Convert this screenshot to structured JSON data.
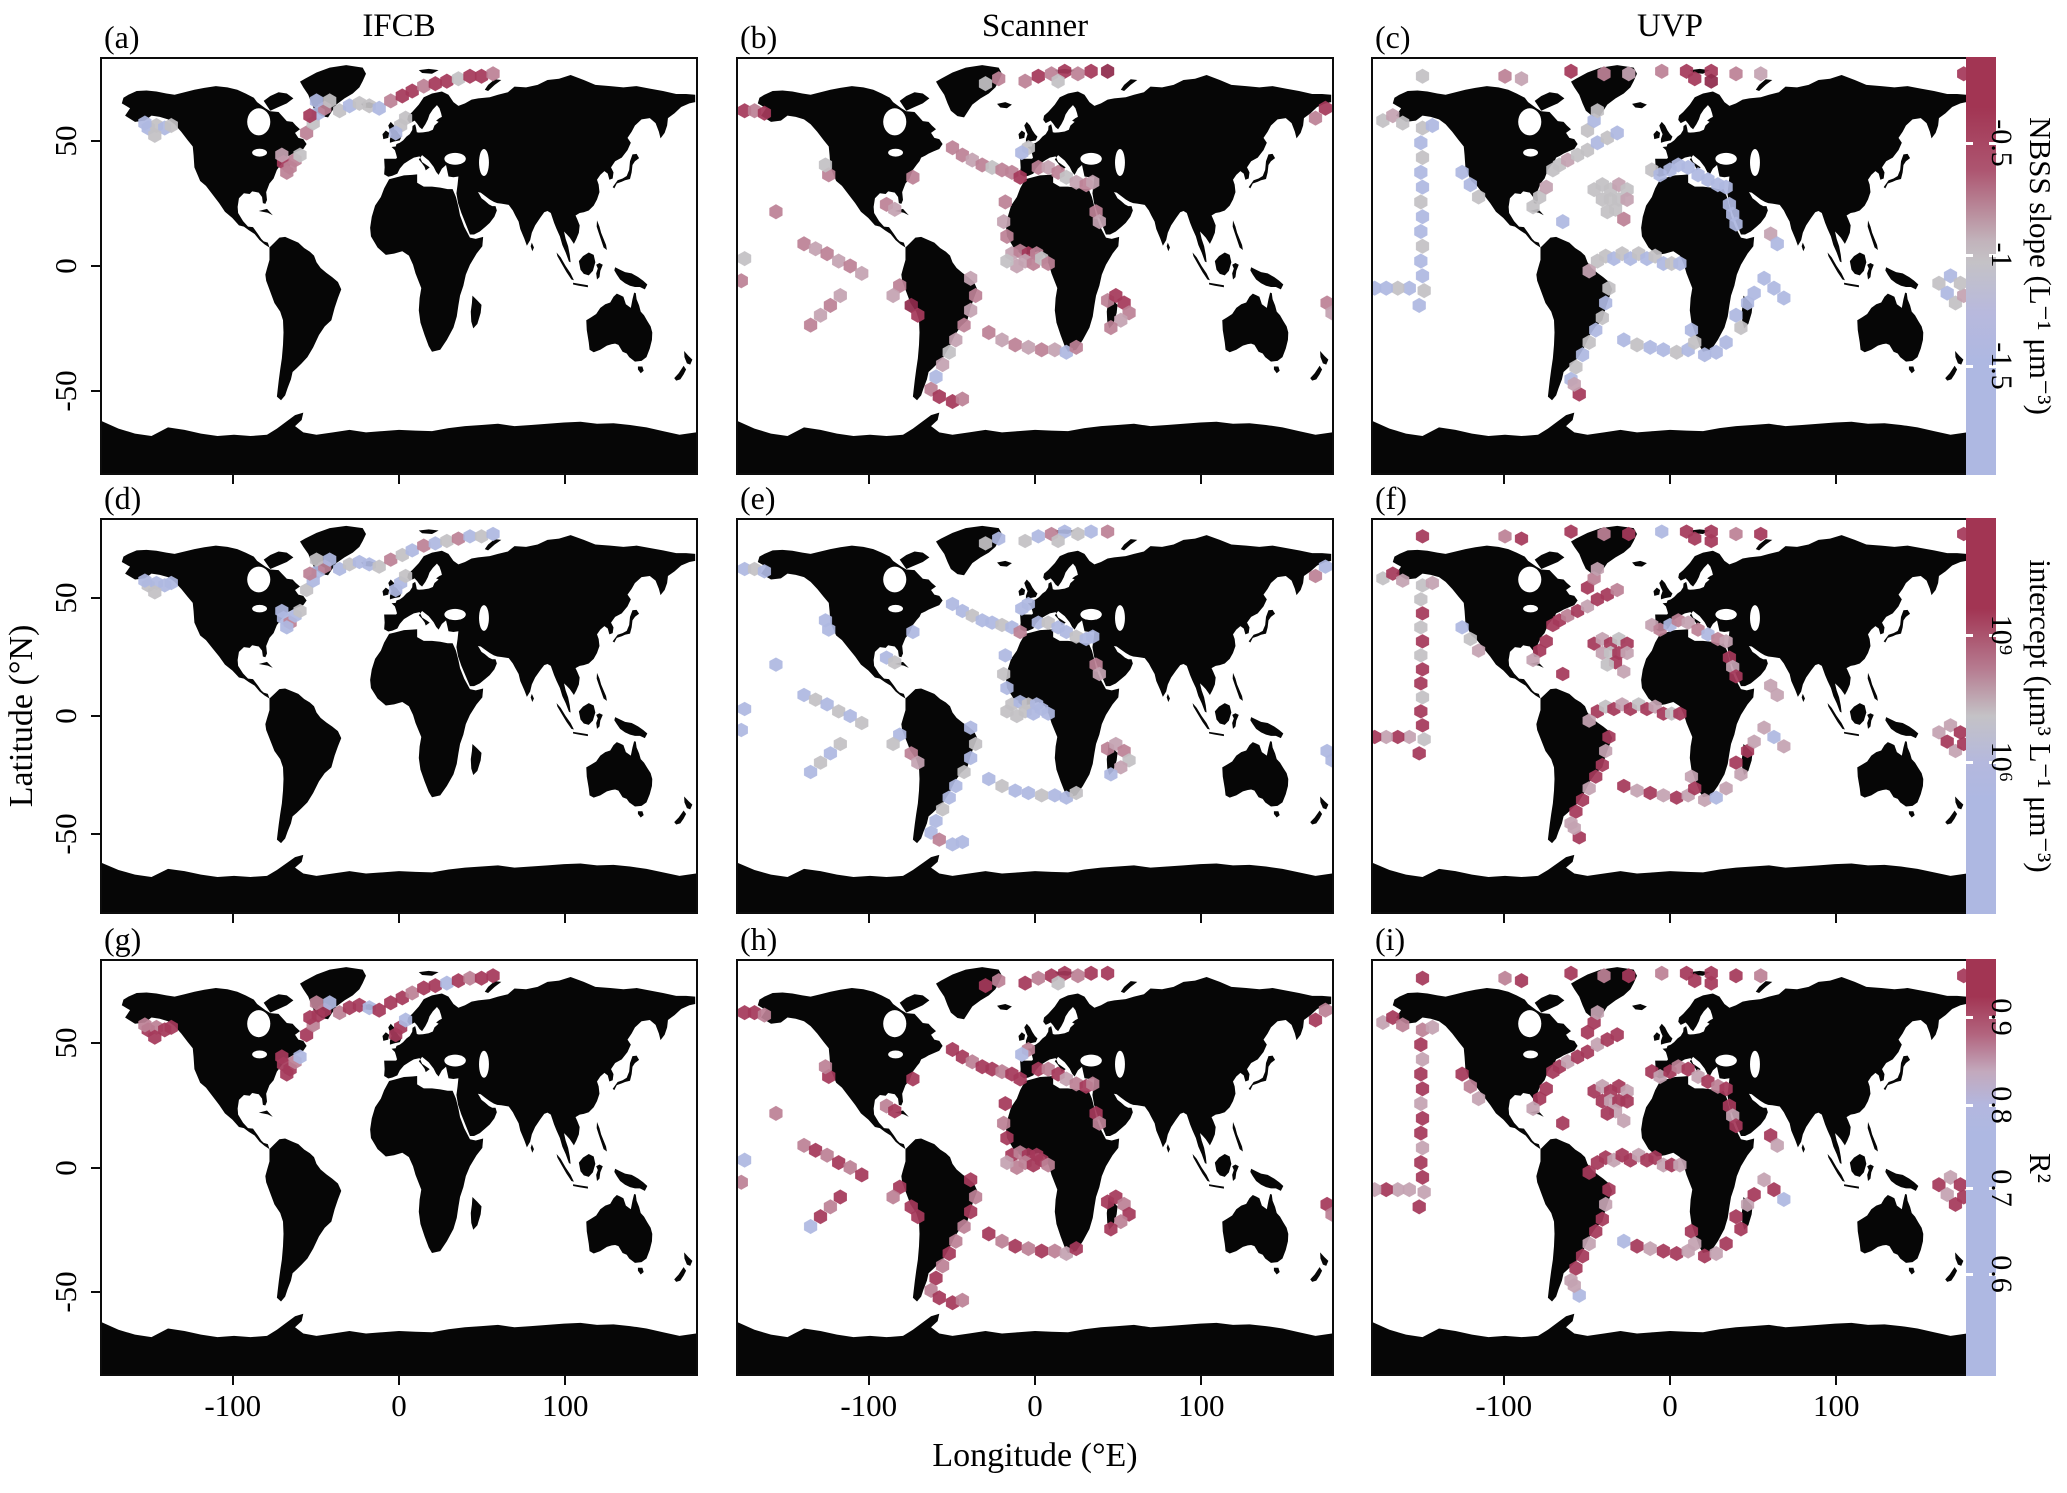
{
  "figure": {
    "column_titles": [
      "IFCB",
      "Scanner",
      "UVP"
    ],
    "row_metrics": [
      "NBSS slope",
      "intercept",
      "R²"
    ],
    "xlabel": "Longitude (°E)",
    "ylabel": "Latitude (°N)",
    "x_ticks": [
      "-100",
      "0",
      "100"
    ],
    "y_ticks": [
      "50",
      "0",
      "-50"
    ]
  },
  "colorbars": [
    {
      "title": "NBSS slope (L⁻¹ μm⁻³)",
      "ticks": [
        "-0.5",
        "-1",
        "-1.5"
      ]
    },
    {
      "title": "intercept (μm³ L⁻¹ μm⁻³)",
      "ticks": [
        "10⁹",
        "10⁶"
      ]
    },
    {
      "title": "R²",
      "ticks": [
        "0.9",
        "0.8",
        "0.7",
        "0.6"
      ]
    }
  ],
  "palette": {
    "r": "#a5395a",
    "d": "#8f2b4c",
    "p": "#bc8196",
    "m": "#c4a3b1",
    "g": "#c3c1c4",
    "b": "#aeb8e1",
    "land": "#060606",
    "ocean": "#ffffff"
  },
  "chart_data": {
    "type": "map-hexbin-grid",
    "letters": [
      "(a)",
      "(b)",
      "(c)",
      "(d)",
      "(e)",
      "(f)",
      "(g)",
      "(h)",
      "(i)"
    ],
    "projection": {
      "lon_range": [
        -180,
        180
      ],
      "lat_range": [
        -84,
        84
      ]
    },
    "rows": [
      "slope",
      "intercept",
      "r2"
    ],
    "instruments": [
      {
        "name": "IFCB",
        "points": [
          [
            -152,
            56
          ],
          [
            -147,
            57
          ],
          [
            -142,
            56
          ],
          [
            -148,
            53
          ],
          [
            -154,
            58
          ],
          [
            -138,
            57
          ],
          [
            -70,
            42
          ],
          [
            -66,
            40
          ],
          [
            -63,
            43
          ],
          [
            -60,
            45
          ],
          [
            -68,
            38
          ],
          [
            -71,
            45
          ],
          [
            -56,
            54
          ],
          [
            -52,
            58
          ],
          [
            -49,
            62
          ],
          [
            -45,
            64
          ],
          [
            -42,
            67
          ],
          [
            -50,
            67
          ],
          [
            -54,
            61
          ],
          [
            -36,
            63
          ],
          [
            -30,
            65
          ],
          [
            -24,
            66
          ],
          [
            -18,
            65
          ],
          [
            -12,
            64
          ],
          [
            -5,
            67
          ],
          [
            2,
            69
          ],
          [
            8,
            71
          ],
          [
            15,
            73
          ],
          [
            22,
            74
          ],
          [
            29,
            75
          ],
          [
            36,
            76
          ],
          [
            43,
            77
          ],
          [
            50,
            77
          ],
          [
            57,
            78
          ],
          [
            1,
            57
          ],
          [
            4,
            60
          ],
          [
            -2,
            54
          ]
        ],
        "colors": {
          "slope": [
            "bgbgbg",
            "rppgpm",
            "pgbpgbr",
            "gbggb",
            "prrprrgrrp",
            "ggb"
          ],
          "intercept": [
            "gbbgbb",
            "bpbgbb",
            "gbbpbgp",
            "bgbbg",
            "pgbpbgpbgb",
            "bgb"
          ],
          "r2": [
            "rprrpr",
            "rrpbrr",
            "rprrbpr",
            "prrbr",
            "rrprrbrprr",
            "rbr"
          ]
        }
      },
      {
        "name": "Scanner",
        "points": [
          [
            -176,
            63
          ],
          [
            -170,
            63
          ],
          [
            -164,
            62
          ],
          [
            170,
            60
          ],
          [
            176,
            64
          ],
          [
            -6,
            75
          ],
          [
            2,
            77
          ],
          [
            10,
            78
          ],
          [
            18,
            79
          ],
          [
            26,
            78
          ],
          [
            34,
            79
          ],
          [
            14,
            75
          ],
          [
            44,
            79
          ],
          [
            -22,
            76
          ],
          [
            -30,
            74
          ],
          [
            -50,
            48
          ],
          [
            -44,
            45
          ],
          [
            -38,
            43
          ],
          [
            -32,
            41
          ],
          [
            -26,
            40
          ],
          [
            -20,
            39
          ],
          [
            -14,
            38
          ],
          [
            -9,
            36
          ],
          [
            -4,
            48
          ],
          [
            -8,
            46
          ],
          [
            2,
            40
          ],
          [
            8,
            40
          ],
          [
            14,
            38
          ],
          [
            19,
            36
          ],
          [
            25,
            34
          ],
          [
            31,
            33
          ],
          [
            35,
            34
          ],
          [
            37,
            22
          ],
          [
            39,
            18
          ],
          [
            -18,
            26
          ],
          [
            -19,
            18
          ],
          [
            -17,
            12
          ],
          [
            -14,
            5
          ],
          [
            -9,
            6
          ],
          [
            -4,
            5
          ],
          [
            1,
            5
          ],
          [
            -6,
            2
          ],
          [
            -1,
            1
          ],
          [
            -11,
            0
          ],
          [
            4,
            3
          ],
          [
            -17,
            2
          ],
          [
            8,
            1
          ],
          [
            -39,
            -5
          ],
          [
            -36,
            -12
          ],
          [
            -39,
            -18
          ],
          [
            -43,
            -24
          ],
          [
            -48,
            -30
          ],
          [
            -52,
            -35
          ],
          [
            -56,
            -40
          ],
          [
            -60,
            -45
          ],
          [
            -63,
            -50
          ],
          [
            -58,
            -53
          ],
          [
            -50,
            -55
          ],
          [
            -44,
            -54
          ],
          [
            -28,
            -27
          ],
          [
            -20,
            -30
          ],
          [
            -12,
            -32
          ],
          [
            -4,
            -33
          ],
          [
            4,
            -34
          ],
          [
            12,
            -34
          ],
          [
            19,
            -35
          ],
          [
            25,
            -33
          ],
          [
            44,
            -14
          ],
          [
            49,
            -12
          ],
          [
            54,
            -15
          ],
          [
            57,
            -19
          ],
          [
            52,
            -22
          ],
          [
            46,
            -25
          ],
          [
            -140,
            9
          ],
          [
            -133,
            7
          ],
          [
            -126,
            5
          ],
          [
            -119,
            2
          ],
          [
            -112,
            0
          ],
          [
            -105,
            -3
          ],
          [
            -118,
            -12
          ],
          [
            -124,
            -16
          ],
          [
            -130,
            -20
          ],
          [
            -136,
            -24
          ],
          [
            -82,
            -8
          ],
          [
            -86,
            -12
          ],
          [
            -75,
            -16
          ],
          [
            -71,
            -20
          ],
          [
            -125,
            37
          ],
          [
            -127,
            41
          ],
          [
            -90,
            25
          ],
          [
            -85,
            23
          ],
          [
            -74,
            36
          ],
          [
            -157,
            22
          ],
          [
            -176,
            3
          ],
          [
            -178,
            -6
          ],
          [
            177,
            -15
          ],
          [
            180,
            -19
          ]
        ],
        "colors": {
          "slope": [
            "rpr",
            "pr",
            "prprprgd",
            "pg",
            "ppmpgppr",
            "gb",
            "pmpgmpm",
            "pm",
            "pmp",
            "mprpmpmgg",
            "p",
            "mpmp",
            "mgmbprrp",
            "pmpmpmbp",
            "prrpmp",
            "pmpmpm",
            "mpmp",
            "pmdr",
            "pg",
            "pm",
            "p",
            "p",
            "gp",
            "pm"
          ],
          "intercept": [
            "bgb",
            "pb",
            "gbpbgbgp",
            "bg",
            "bbgbbgbp",
            "bb",
            "bgbbgbb",
            "pm",
            "bgb",
            "gbgbgbgbg",
            "b",
            "bgbg",
            "bbgbbpbb",
            "bgbbgbbg",
            "pmpgmb",
            "bgbgbg",
            "gbgb",
            "bgpm",
            "bb",
            "bg",
            "b",
            "b",
            "bb",
            "bb"
          ],
          "r2": [
            "rrp",
            "rp",
            "rprrprgr",
            "pr",
            "rrprrprr",
            "pb",
            "rprmprp",
            "rp",
            "rpr",
            "rprrprprm",
            "p",
            "rprp",
            "prprprrp",
            "rprprpmr",
            "rrprpr",
            "prprpr",
            "rprb",
            "rprr",
            "rp",
            "pr",
            "r",
            "p",
            "bp",
            "rp"
          ]
        }
      },
      {
        "name": "UVP",
        "points": [
          [
            -150,
            77
          ],
          [
            -100,
            77
          ],
          [
            -90,
            76
          ],
          [
            -60,
            79
          ],
          [
            -40,
            78
          ],
          [
            -25,
            78
          ],
          [
            -5,
            79
          ],
          [
            10,
            79
          ],
          [
            25,
            79
          ],
          [
            40,
            78
          ],
          [
            55,
            78
          ],
          [
            178,
            78
          ],
          [
            15,
            76
          ],
          [
            25,
            75
          ],
          [
            -174,
            59
          ],
          [
            -168,
            61
          ],
          [
            -162,
            58
          ],
          [
            -150,
            56
          ],
          [
            -144,
            57
          ],
          [
            -151,
            50
          ],
          [
            -150,
            44
          ],
          [
            -151,
            38
          ],
          [
            -150,
            32
          ],
          [
            -151,
            26
          ],
          [
            -150,
            20
          ],
          [
            -151,
            14
          ],
          [
            -150,
            8
          ],
          [
            -151,
            2
          ],
          [
            -150,
            -4
          ],
          [
            -149,
            -10
          ],
          [
            -152,
            -16
          ],
          [
            -158,
            -9
          ],
          [
            -165,
            -9
          ],
          [
            -172,
            -9
          ],
          [
            -179,
            -9
          ],
          [
            -126,
            38
          ],
          [
            -121,
            33
          ],
          [
            -116,
            28
          ],
          [
            -71,
            39
          ],
          [
            -67,
            41
          ],
          [
            -62,
            43
          ],
          [
            -56,
            45
          ],
          [
            -50,
            47
          ],
          [
            -44,
            50
          ],
          [
            -38,
            52
          ],
          [
            -32,
            54
          ],
          [
            -50,
            55
          ],
          [
            -46,
            59
          ],
          [
            -44,
            63
          ],
          [
            -46,
            31
          ],
          [
            -41,
            33
          ],
          [
            -36,
            31
          ],
          [
            -31,
            33
          ],
          [
            -26,
            31
          ],
          [
            -41,
            27
          ],
          [
            -36,
            27
          ],
          [
            -31,
            27
          ],
          [
            -26,
            27
          ],
          [
            -33,
            23
          ],
          [
            -38,
            22
          ],
          [
            -28,
            19
          ],
          [
            -79,
            28
          ],
          [
            -75,
            32
          ],
          [
            -83,
            24
          ],
          [
            -65,
            18
          ],
          [
            -11,
            39
          ],
          [
            -6,
            37
          ],
          [
            0,
            39
          ],
          [
            5,
            41
          ],
          [
            11,
            40
          ],
          [
            17,
            37
          ],
          [
            23,
            35
          ],
          [
            29,
            33
          ],
          [
            34,
            32
          ],
          [
            36,
            25
          ],
          [
            38,
            21
          ],
          [
            40,
            17
          ],
          [
            -44,
            2
          ],
          [
            -39,
            4
          ],
          [
            -34,
            3
          ],
          [
            -29,
            5
          ],
          [
            -24,
            3
          ],
          [
            -19,
            5
          ],
          [
            -14,
            3
          ],
          [
            -9,
            4
          ],
          [
            -4,
            1
          ],
          [
            1,
            1
          ],
          [
            -49,
            -2
          ],
          [
            6,
            1
          ],
          [
            -37,
            -9
          ],
          [
            -39,
            -15
          ],
          [
            -41,
            -21
          ],
          [
            -45,
            -26
          ],
          [
            -49,
            -31
          ],
          [
            -53,
            -36
          ],
          [
            -57,
            -41
          ],
          [
            -60,
            -46
          ],
          [
            -55,
            -52
          ],
          [
            -58,
            -48
          ],
          [
            -28,
            -30
          ],
          [
            -20,
            -32
          ],
          [
            -12,
            -33
          ],
          [
            -4,
            -34
          ],
          [
            4,
            -35
          ],
          [
            11,
            -34
          ],
          [
            13,
            -26
          ],
          [
            15,
            -31
          ],
          [
            21,
            -36
          ],
          [
            28,
            -35
          ],
          [
            34,
            -31
          ],
          [
            40,
            -20
          ],
          [
            43,
            -25
          ],
          [
            47,
            -15
          ],
          [
            51,
            -11
          ],
          [
            57,
            -5
          ],
          [
            63,
            -9
          ],
          [
            69,
            -13
          ],
          [
            61,
            13
          ],
          [
            65,
            9
          ],
          [
            163,
            -7
          ],
          [
            168,
            -11
          ],
          [
            173,
            -15
          ],
          [
            178,
            -12
          ],
          [
            170,
            -4
          ],
          [
            176,
            -7
          ]
        ],
        "colors": {
          "slope": [
            "gpmrpmprrpmr",
            "rd",
            "gmg",
            "gb",
            "bgbbgbbgbbgb",
            "bgbb",
            "bbg",
            "ggmggbgb",
            "gbg",
            "gggmggggmggp",
            "gmgb",
            "gbbbbbbbb",
            "bbb",
            "ggbgbgbgbgmb",
            "gbgbgbgbrm",
            "bgbbgb",
            "bgbbb",
            "bgbb",
            "bbb",
            "mb",
            "gbgmbg"
          ],
          "intercept": [
            "rprrprbrrprr",
            "rr",
            "grm",
            "gm",
            "grgrgrrgrrgr",
            "mrmr",
            "bgm",
            "rrprmrrp",
            "rpm",
            "rmrgrmgrmrgm",
            "rrmr",
            "mpbpmpbpm",
            "rmr",
            "rgrmrgrmrgmr",
            "rmrrmrrmrm",
            "rmrmrm",
            "mrmbm",
            "rmrm",
            "mbm",
            "mm",
            "mrmrmr"
          ],
          "r2": [
            "rprrprprrrpr",
            "rr",
            "mrp",
            "pm",
            "rmrrmrrmrrmr",
            "mmrm",
            "rpm",
            "rrmrrmrr",
            "rrm",
            "rmrrmrmrrmrm",
            "rrmr",
            "rmrprmrpr",
            "rmr",
            "rrmrrmrrmrrm",
            "rmrrmrrmbm",
            "brmrrm",
            "rmrmr",
            "rrmr",
            "mrb",
            "rm",
            "rmrrmr"
          ]
        }
      }
    ]
  }
}
